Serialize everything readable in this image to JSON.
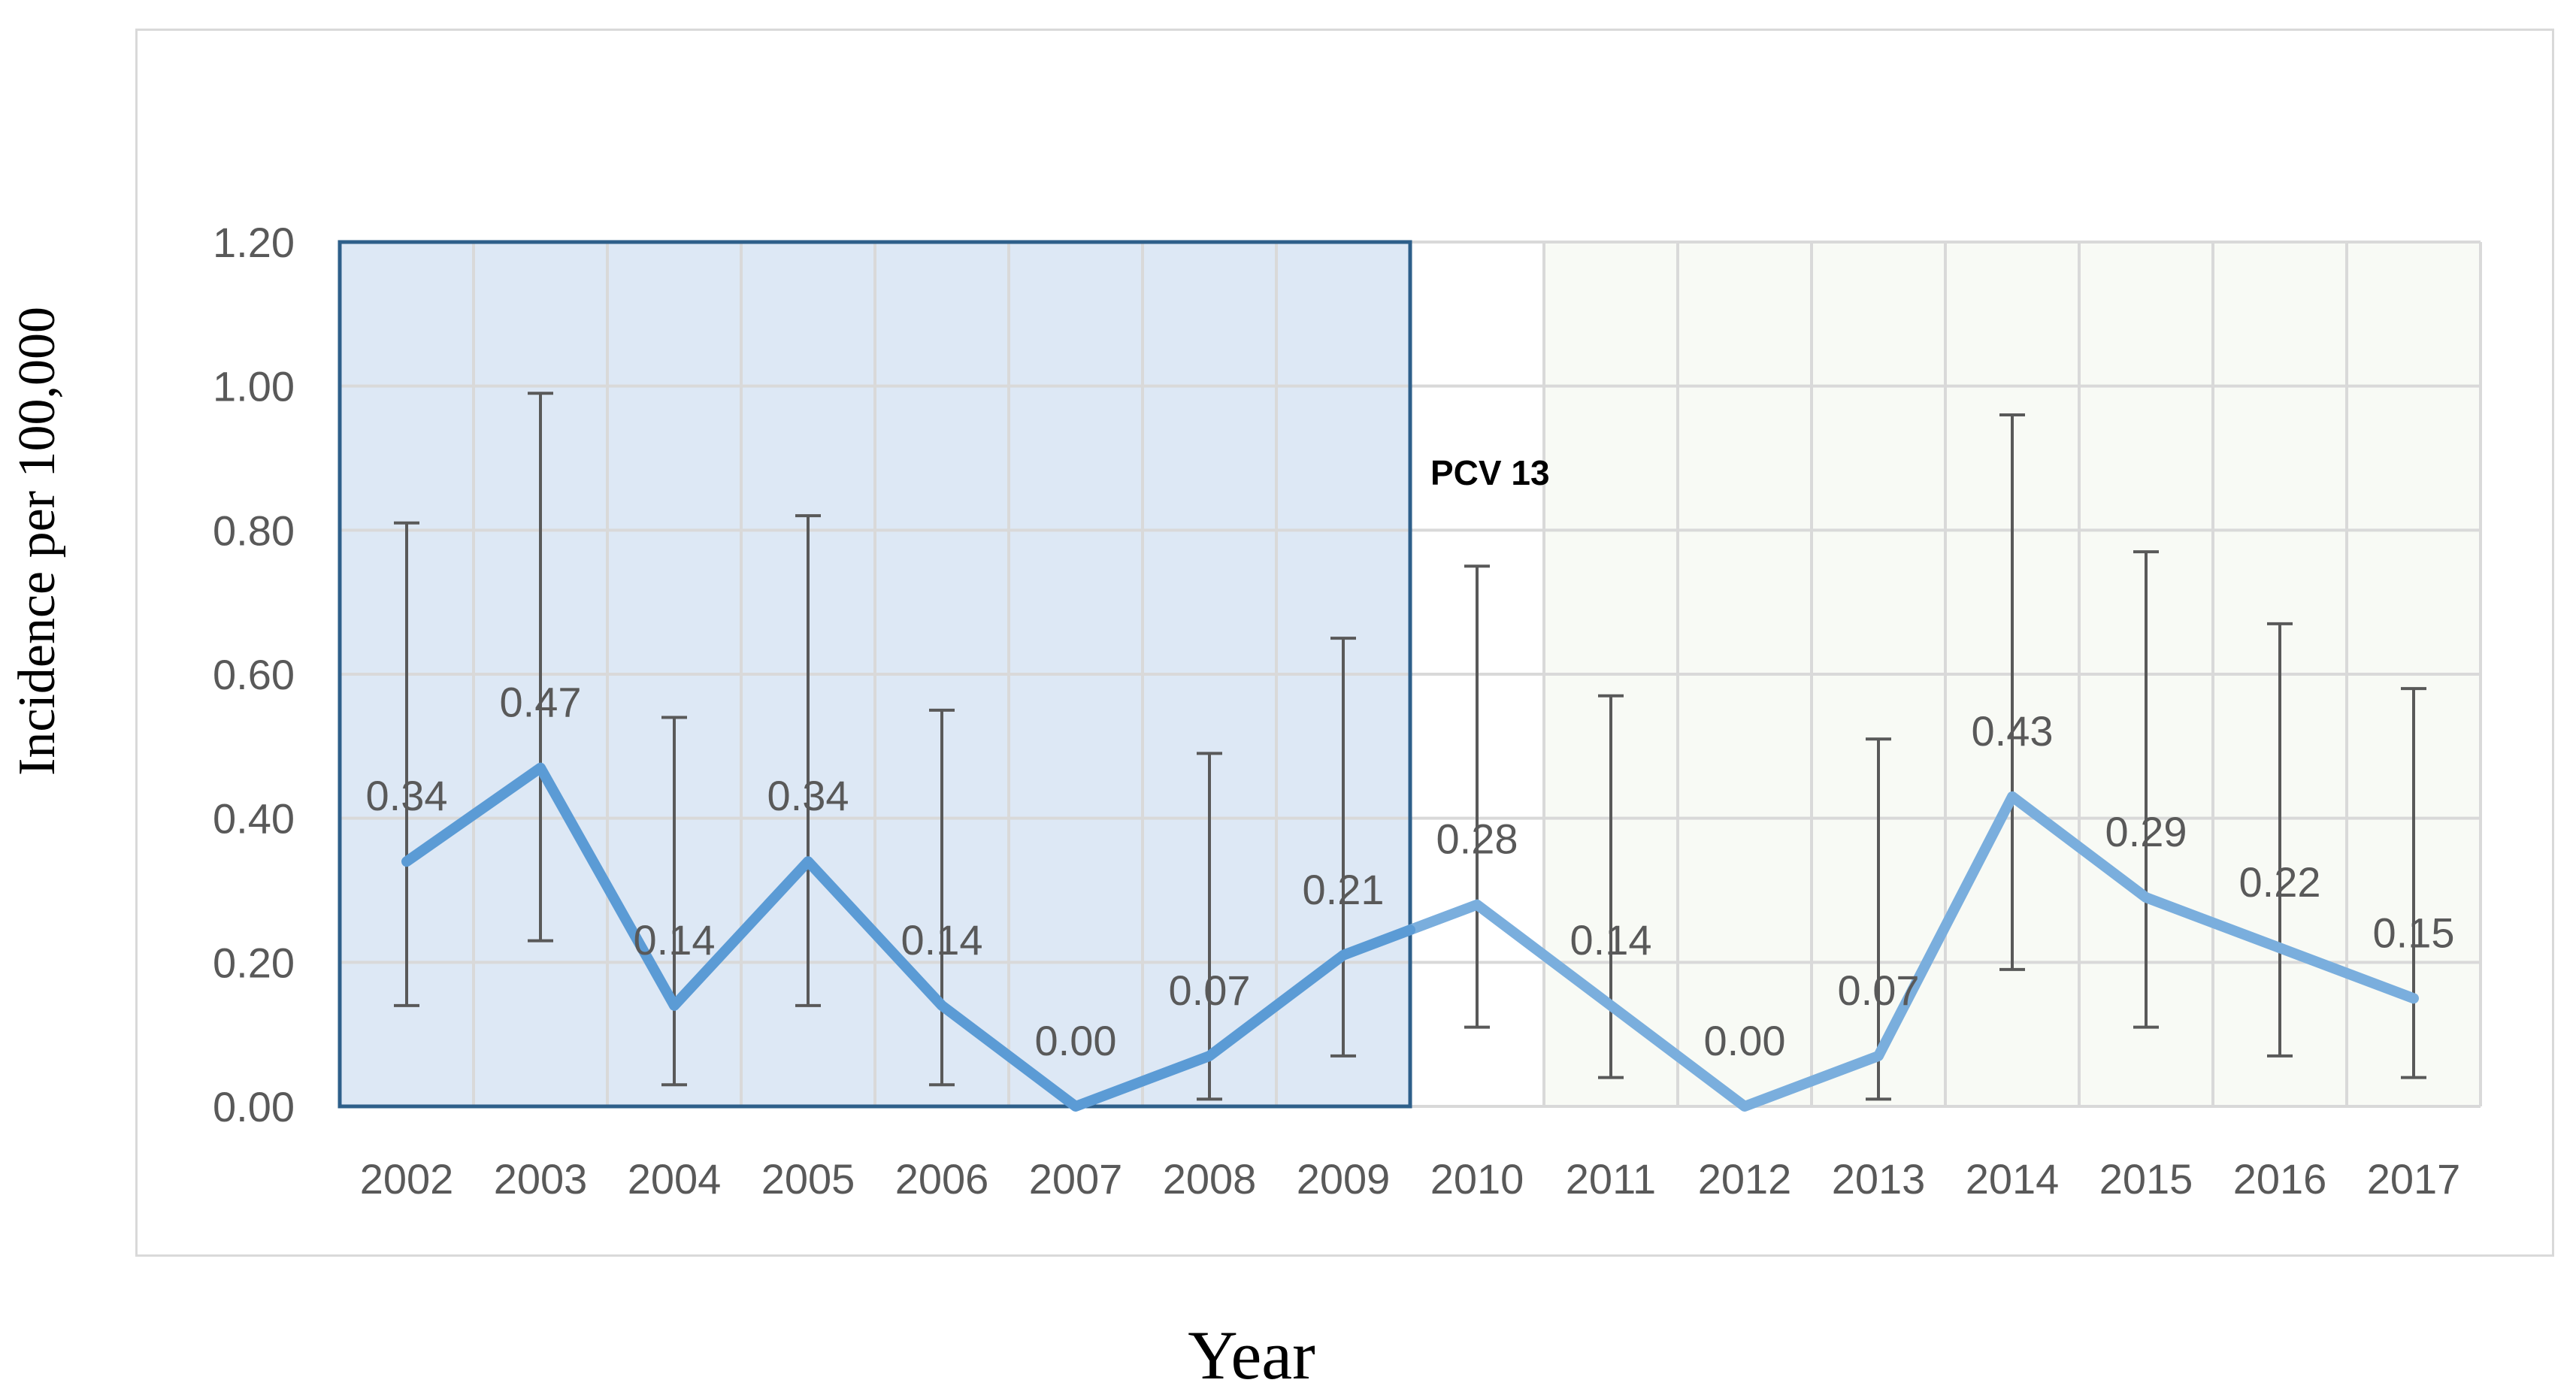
{
  "chart_data": {
    "type": "line",
    "x": [
      "2002",
      "2003",
      "2004",
      "2005",
      "2006",
      "2007",
      "2008",
      "2009",
      "2010",
      "2011",
      "2012",
      "2013",
      "2014",
      "2015",
      "2016",
      "2017"
    ],
    "values": [
      0.34,
      0.47,
      0.14,
      0.34,
      0.14,
      0.0,
      0.07,
      0.21,
      0.28,
      0.14,
      0.0,
      0.07,
      0.43,
      0.29,
      0.22,
      0.15
    ],
    "data_labels": [
      "0.34",
      "0.47",
      "0.14",
      "0.34",
      "0.14",
      "0.00",
      "0.07",
      "0.21",
      "0.28",
      "0.14",
      "0.00",
      "0.07",
      "0.43",
      "0.29",
      "0.22",
      "0.15"
    ],
    "error_low": [
      0.14,
      0.23,
      0.03,
      0.14,
      0.03,
      0.0,
      0.01,
      0.07,
      0.11,
      0.04,
      0.0,
      0.01,
      0.19,
      0.11,
      0.07,
      0.04
    ],
    "error_high": [
      0.81,
      0.99,
      0.54,
      0.82,
      0.55,
      0.0,
      0.49,
      0.65,
      0.75,
      0.57,
      0.0,
      0.51,
      0.96,
      0.77,
      0.67,
      0.58
    ],
    "ylim": [
      0,
      1.2
    ],
    "yticks": [
      "0.00",
      "0.20",
      "0.40",
      "0.60",
      "0.80",
      "1.00",
      "1.20"
    ],
    "xlabel": "Year",
    "ylabel": "Incidence per 100,000",
    "annotation": "PCV 13",
    "grid": true,
    "shaded_region_pre": {
      "from": "2002",
      "to": "2009",
      "color": "#dde8f5",
      "border": "#2e5f8a"
    },
    "shaded_region_post": {
      "from": "2011",
      "to": "2017",
      "color": "#f8faf5"
    },
    "colors": {
      "line_pre": "#5b9bd5",
      "line_post": "#7aaedd",
      "error_bar": "#595959",
      "grid": "#d9d9d9"
    }
  }
}
